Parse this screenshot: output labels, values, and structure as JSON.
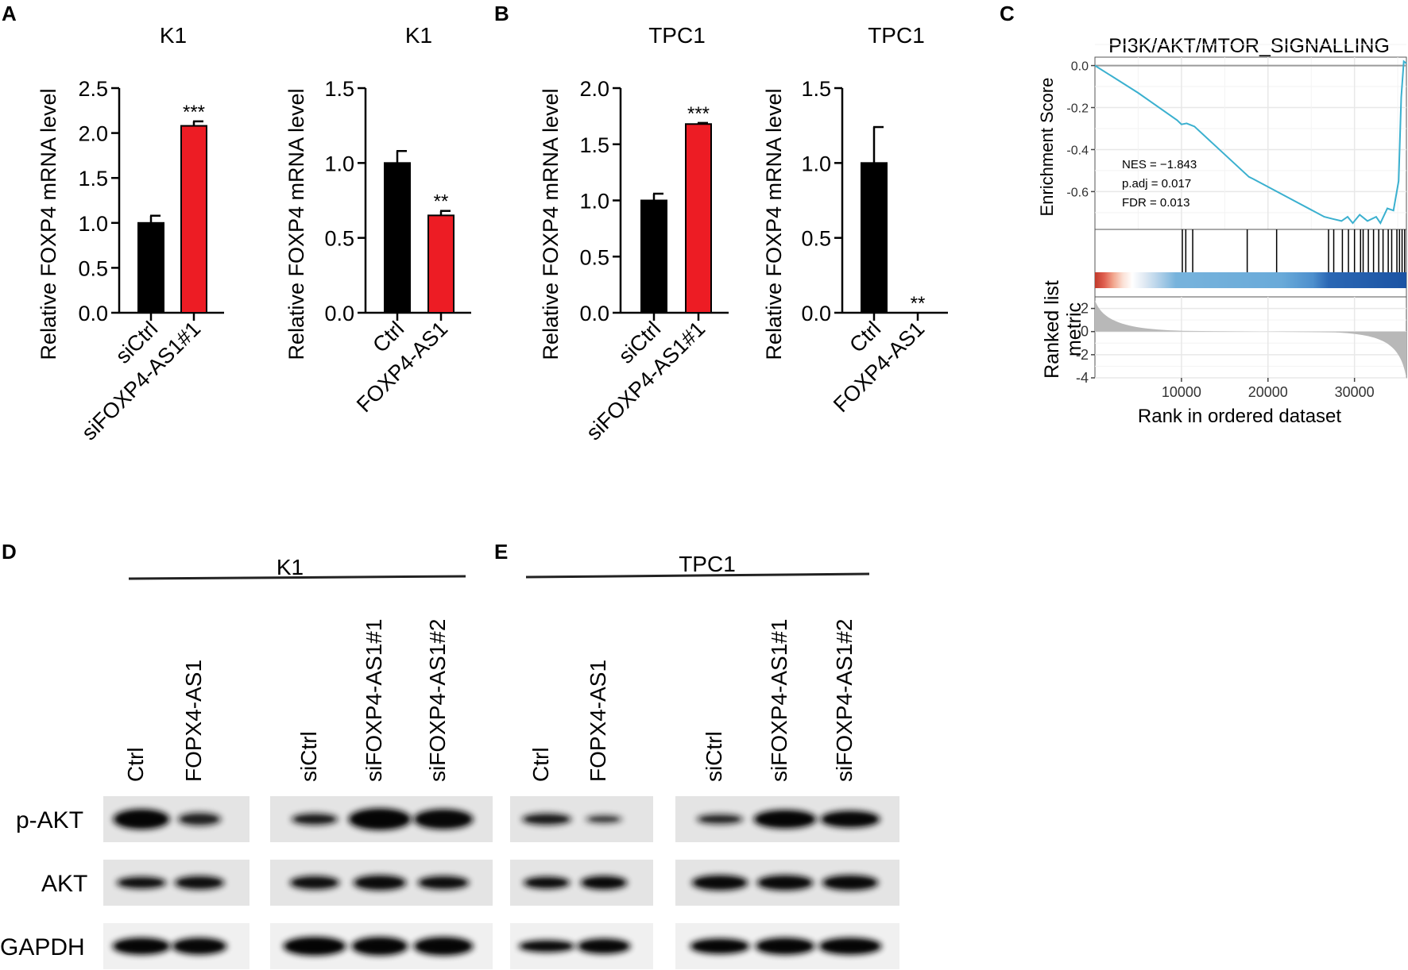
{
  "panels": {
    "a": "A",
    "b": "B",
    "c": "C",
    "d": "D",
    "e": "E"
  },
  "chart_data": [
    {
      "id": "A1",
      "type": "bar",
      "title": "K1",
      "ylabel": "Relative FOXP4 mRNA  level",
      "categories": [
        "siCtrl",
        "siFOXP4-AS1#1"
      ],
      "values": [
        1.0,
        2.08
      ],
      "errors": [
        0.08,
        0.05
      ],
      "significance": [
        "",
        "***"
      ],
      "colors": [
        "#000000",
        "#ed1c24"
      ],
      "ylim": [
        0,
        2.5
      ],
      "yticks": [
        "0.0",
        "0.5",
        "1.0",
        "1.5",
        "2.0",
        "2.5"
      ]
    },
    {
      "id": "A2",
      "type": "bar",
      "title": "K1",
      "ylabel": "Relative FOXP4 mRNA  level",
      "categories": [
        "Ctrl",
        "FOXP4-AS1"
      ],
      "values": [
        1.0,
        0.65
      ],
      "errors": [
        0.08,
        0.03
      ],
      "significance": [
        "",
        "**"
      ],
      "colors": [
        "#000000",
        "#ed1c24"
      ],
      "ylim": [
        0,
        1.5
      ],
      "yticks": [
        "0.0",
        "0.5",
        "1.0",
        "1.5"
      ]
    },
    {
      "id": "B1",
      "type": "bar",
      "title": "TPC1",
      "ylabel": "Relative FOXP4 mRNA  level",
      "categories": [
        "siCtrl",
        "siFOXP4-AS1#1"
      ],
      "values": [
        1.0,
        1.68
      ],
      "errors": [
        0.06,
        0.01
      ],
      "significance": [
        "",
        "***"
      ],
      "colors": [
        "#000000",
        "#ed1c24"
      ],
      "ylim": [
        0,
        2.0
      ],
      "yticks": [
        "0.0",
        "0.5",
        "1.0",
        "1.5",
        "2.0"
      ]
    },
    {
      "id": "B2",
      "type": "bar",
      "title": "TPC1",
      "ylabel": "Relative FOXP4 mRNA  level",
      "categories": [
        "Ctrl",
        "FOXP4-AS1"
      ],
      "values": [
        1.0,
        0.0
      ],
      "errors": [
        0.24,
        0.0
      ],
      "significance": [
        "",
        "**"
      ],
      "colors": [
        "#000000",
        "#ed1c24"
      ],
      "ylim": [
        0,
        1.5
      ],
      "yticks": [
        "0.0",
        "0.5",
        "1.0",
        "1.5"
      ]
    },
    {
      "id": "C",
      "type": "line",
      "title": "PI3K/AKT/MTOR_SIGNALLING",
      "ylabel": "Enrichment Score",
      "ylabel2_line1": "Ranked list",
      "ylabel2_line2": "metric",
      "xlabel": "Rank in ordered dataset",
      "yticks": [
        "0.0",
        "-0.2",
        "-0.4",
        "-0.6"
      ],
      "yticks2": [
        "2",
        "0",
        "-2",
        "-4"
      ],
      "xticks": [
        "10000",
        "20000",
        "30000"
      ],
      "xlim": [
        0,
        36000
      ],
      "ylim": [
        -0.78,
        0.04
      ],
      "ylim2": [
        -4,
        3
      ],
      "annotations": [
        "NES = −1.843",
        "p.adj = 0.017",
        "FDR = 0.013"
      ],
      "x": [
        0,
        5000,
        9500,
        10000,
        10600,
        11500,
        17800,
        18300,
        26500,
        27500,
        28500,
        29200,
        29800,
        30600,
        31500,
        32500,
        33000,
        33800,
        34500,
        35100,
        35400,
        35700,
        36000
      ],
      "y": [
        0.0,
        -0.13,
        -0.26,
        -0.28,
        -0.275,
        -0.29,
        -0.53,
        -0.54,
        -0.72,
        -0.73,
        -0.74,
        -0.72,
        -0.75,
        -0.71,
        -0.74,
        -0.72,
        -0.75,
        -0.68,
        -0.69,
        -0.55,
        -0.15,
        0.02,
        0.01
      ],
      "hits": [
        10100,
        10500,
        11300,
        17600,
        21000,
        27000,
        27600,
        28600,
        29300,
        30000,
        30700,
        31000,
        31600,
        32200,
        32800,
        33300,
        33900,
        34300,
        34900,
        35200,
        35500,
        35800
      ],
      "line_color": "#3ab0cf"
    }
  ],
  "blot_d": {
    "header": "K1",
    "group1": [
      "Ctrl",
      "FOPX4-AS1"
    ],
    "group2": [
      "siCtrl",
      "siFOXP4-AS1#1",
      "siFOXP4-AS1#2"
    ],
    "rows": [
      "p-AKT",
      "AKT",
      "GAPDH"
    ]
  },
  "blot_e": {
    "header": "TPC1",
    "group1": [
      "Ctrl",
      "FOPX4-AS1"
    ],
    "group2": [
      "siCtrl",
      "siFOXP4-AS1#1",
      "siFOXP4-AS1#2"
    ]
  }
}
